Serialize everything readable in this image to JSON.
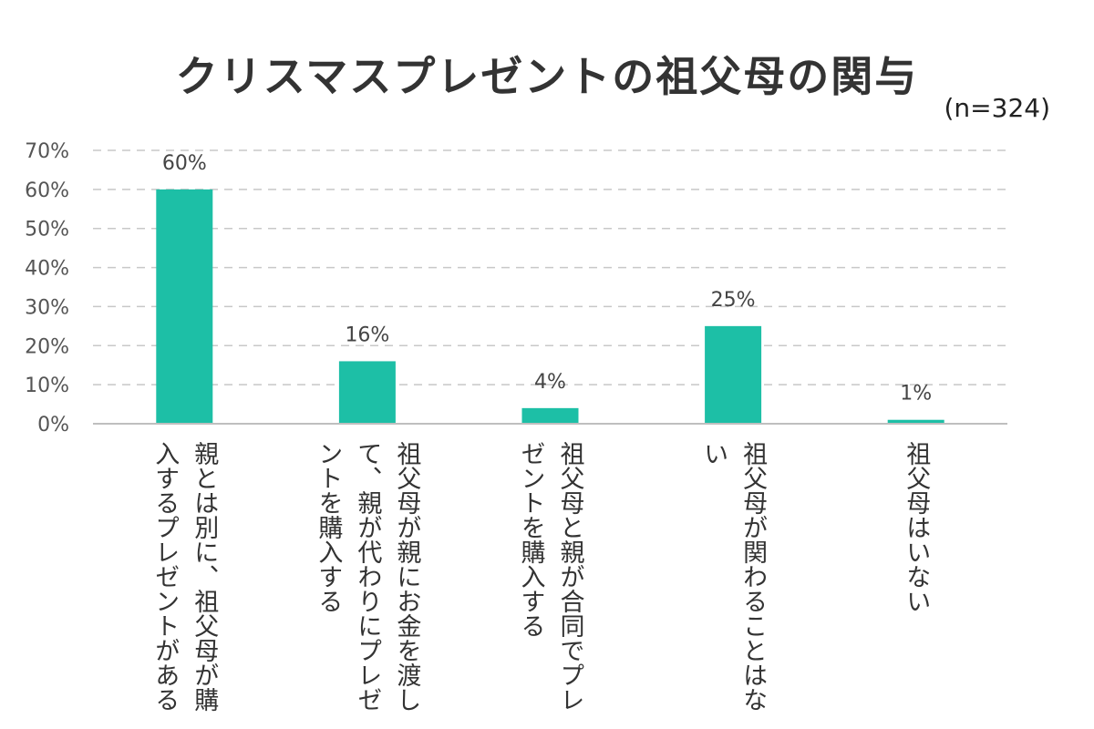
{
  "chart_data": {
    "type": "bar",
    "title": "クリスマスプレゼントの祖父母の関与",
    "subtitle": "(n=324)",
    "categories": [
      "親とは別に、祖父母が購入するプレゼントがある",
      "祖父母が親にお金を渡して、親が代わりにプレゼントを購入する",
      "祖父母と親が合同でプレゼントを購入する",
      "祖父母が関わることはない",
      "祖父母はいない"
    ],
    "values": [
      60,
      16,
      4,
      25,
      1
    ],
    "value_labels": [
      "60%",
      "16%",
      "4%",
      "25%",
      "1%"
    ],
    "ylim": [
      0,
      70
    ],
    "yticks": [
      "0%",
      "10%",
      "20%",
      "30%",
      "40%",
      "50%",
      "60%",
      "70%"
    ],
    "grid": true,
    "bar_color": "#1dbfa6",
    "grid_color": "#c8c8c8"
  }
}
